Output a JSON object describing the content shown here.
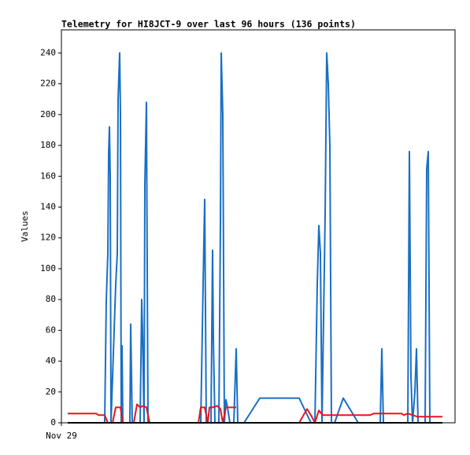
{
  "chart_data": {
    "type": "line",
    "title": "Telemetry for HI8JCT-9 over last 96 hours (136 points)",
    "y_label": "Values",
    "xlim": [
      0,
      100
    ],
    "xticks": [
      {
        "value": 0,
        "label": "Nov 29"
      }
    ],
    "ylim": [
      0,
      255
    ],
    "yticks": [
      0,
      20,
      40,
      60,
      80,
      100,
      120,
      140,
      160,
      180,
      200,
      220,
      240
    ],
    "grid": false,
    "series": [
      {
        "color": "#1a6fc4",
        "x": [
          1.6,
          11,
          11.4,
          11.8,
          12,
          12.2,
          12.4,
          12.6,
          13.8,
          14.2,
          14.4,
          14.8,
          15,
          15.2,
          15.4,
          15.6,
          17.4,
          17.6,
          18,
          20,
          20.4,
          20.6,
          21,
          21.2,
          21.6,
          21.8,
          22,
          35.4,
          36,
          36.4,
          36.8,
          38,
          38.4,
          38.6,
          39,
          40,
          40.4,
          40.6,
          41,
          41.4,
          41.8,
          42.2,
          42.8,
          43.8,
          44.4,
          44.8,
          46.4,
          50.4,
          60.4,
          63.4,
          64.4,
          65,
          65.4,
          65.8,
          66.2,
          67,
          67.4,
          67.8,
          68.2,
          68.6,
          69.4,
          71.6,
          75.4,
          81,
          81.4,
          81.8,
          88,
          88.4,
          88.8,
          89.2,
          89.8,
          90.2,
          90.6,
          92.4,
          92.8,
          93.2,
          93.6,
          96.8
        ],
        "values": [
          0,
          0,
          80,
          110,
          175,
          192,
          160,
          0,
          90,
          110,
          210,
          240,
          200,
          0,
          50,
          0,
          0,
          64,
          0,
          0,
          80,
          60,
          0,
          155,
          208,
          100,
          0,
          0,
          90,
          145,
          0,
          0,
          112,
          55,
          0,
          0,
          130,
          240,
          200,
          0,
          15,
          10,
          0,
          0,
          48,
          0,
          0,
          16,
          16,
          0,
          0,
          90,
          128,
          110,
          0,
          135,
          240,
          220,
          180,
          0,
          0,
          16,
          0,
          0,
          48,
          0,
          0,
          176,
          30,
          0,
          20,
          48,
          0,
          0,
          165,
          176,
          0,
          0
        ]
      },
      {
        "color": "#e8141c",
        "x": [
          1.6,
          8.8,
          9.4,
          11,
          11.8,
          13,
          13.8,
          15,
          15.6,
          18.4,
          19.2,
          20,
          20.8,
          21.6,
          22.4,
          28,
          34.8,
          35.4,
          36.4,
          37.2,
          37.6,
          38.4,
          39.6,
          40.4,
          41,
          41.8,
          44.4,
          52,
          60.4,
          62.4,
          63.6,
          64.4,
          65.4,
          66.4,
          68.4,
          78.4,
          79.4,
          86.4,
          87,
          88,
          90.4,
          96.8
        ],
        "values": [
          6,
          6,
          5,
          5,
          0,
          0,
          10,
          10,
          0,
          0,
          12,
          10,
          11,
          10,
          0,
          null,
          0,
          10,
          10,
          0,
          10,
          10,
          11,
          9,
          0,
          10,
          10,
          null,
          0,
          9,
          4,
          0,
          8,
          5,
          5,
          5,
          6,
          6,
          5,
          6,
          4,
          4
        ]
      },
      {
        "color": "#000000",
        "x": [
          1.6,
          96.8
        ],
        "values": [
          0,
          0
        ]
      }
    ]
  }
}
